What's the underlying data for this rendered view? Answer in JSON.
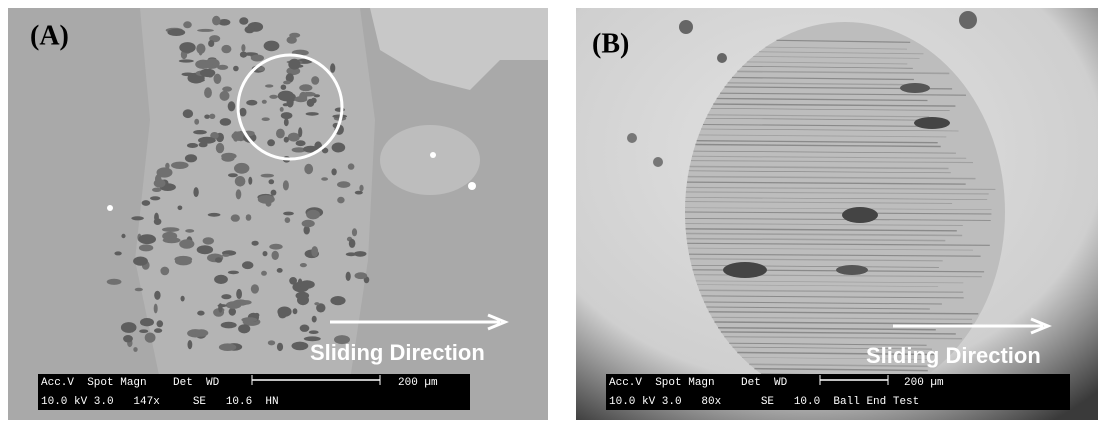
{
  "panels": [
    {
      "label": "(A)",
      "direction_label": "Sliding Direction",
      "info_bar": {
        "header": "Acc.V  Spot Magn    Det  WD",
        "scale": "200 µm",
        "values": "10.0 kV 3.0   147x     SE   10.6  HN"
      }
    },
    {
      "label": "(B)",
      "direction_label": "Sliding Direction",
      "info_bar": {
        "header": "Acc.V  Spot Magn    Det  WD",
        "scale": "200 µm",
        "values": "10.0 kV 3.0   80x      SE   10.0  Ball End Test"
      }
    }
  ]
}
